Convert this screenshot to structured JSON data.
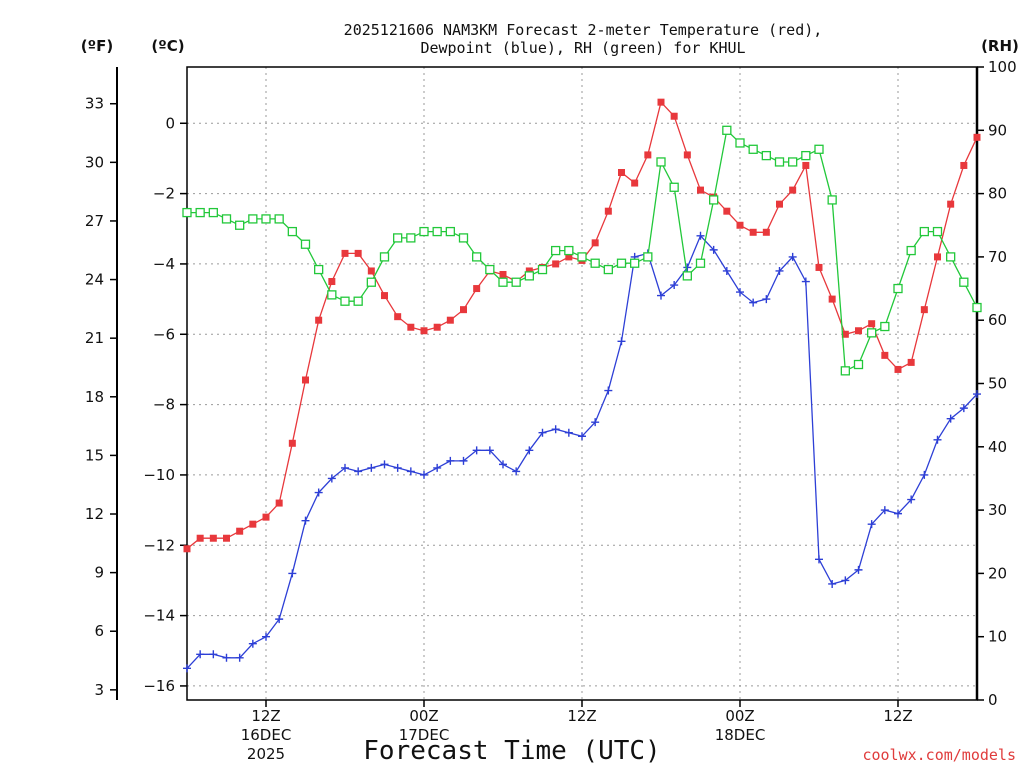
{
  "chart_data": {
    "type": "line",
    "title_line1": "2025121606 NAM3KM Forecast 2-meter Temperature (red),",
    "title_line2": "Dewpoint (blue), RH (green) for KHUL",
    "xlabel": "Forecast Time (UTC)",
    "credit": "coolwx.com/models",
    "units": {
      "fahrenheit": "(ºF)",
      "celsius": "(ºC)",
      "rh": "(RH)"
    },
    "x_range_hours": [
      0,
      60
    ],
    "celsius_range": [
      -16.4,
      1.6
    ],
    "rh_range": [
      0,
      100
    ],
    "fahrenheit_ticks": [
      "3",
      "6",
      "9",
      "12",
      "15",
      "18",
      "21",
      "24",
      "27",
      "30",
      "33"
    ],
    "celsius_ticks": [
      "−16",
      "−14",
      "−12",
      "−10",
      "−8",
      "−6",
      "−4",
      "−2",
      "0"
    ],
    "rh_ticks": [
      "0",
      "10",
      "20",
      "30",
      "40",
      "50",
      "60",
      "70",
      "80",
      "90",
      "100"
    ],
    "x_ticks": [
      {
        "hour": 6,
        "label": "12Z",
        "label2": "16DEC",
        "label3": "2025"
      },
      {
        "hour": 18,
        "label": "00Z",
        "label2": "17DEC",
        "label3": ""
      },
      {
        "hour": 30,
        "label": "12Z",
        "label2": "",
        "label3": ""
      },
      {
        "hour": 42,
        "label": "00Z",
        "label2": "18DEC",
        "label3": ""
      },
      {
        "hour": 54,
        "label": "12Z",
        "label2": "",
        "label3": ""
      }
    ],
    "hours": [
      0,
      1,
      2,
      3,
      4,
      5,
      6,
      7,
      8,
      9,
      10,
      11,
      12,
      13,
      14,
      15,
      16,
      17,
      18,
      19,
      20,
      21,
      22,
      23,
      24,
      25,
      26,
      27,
      28,
      29,
      30,
      31,
      32,
      33,
      34,
      35,
      36,
      37,
      38,
      39,
      40,
      41,
      42,
      43,
      44,
      45,
      46,
      47,
      48,
      49,
      50,
      51,
      52,
      53,
      54,
      55,
      56,
      57,
      58,
      59,
      60
    ],
    "series": [
      {
        "name": "2-meter Temperature",
        "axis": "celsius",
        "color": "#e8383c",
        "marker": "filled-square",
        "values": [
          -12.1,
          -11.8,
          -11.8,
          -11.8,
          -11.6,
          -11.4,
          -11.2,
          -10.8,
          -9.1,
          -7.3,
          -5.6,
          -4.5,
          -3.7,
          -3.7,
          -4.2,
          -4.9,
          -5.5,
          -5.8,
          -5.9,
          -5.8,
          -5.6,
          -5.3,
          -4.7,
          -4.2,
          -4.3,
          -4.5,
          -4.2,
          -4.1,
          -4.0,
          -3.8,
          -3.9,
          -3.4,
          -2.5,
          -1.4,
          -1.7,
          -0.9,
          0.6,
          0.2,
          -0.9,
          -1.9,
          -2.1,
          -2.5,
          -2.9,
          -3.1,
          -3.1,
          -2.3,
          -1.9,
          -1.2,
          -4.1,
          -5.0,
          -6.0,
          -5.9,
          -5.7,
          -6.6,
          -7.0,
          -6.8,
          -5.3,
          -3.8,
          -2.3,
          -1.2,
          -0.4
        ]
      },
      {
        "name": "Dewpoint",
        "axis": "celsius",
        "color": "#2d3fd6",
        "marker": "plus",
        "values": [
          -15.5,
          -15.1,
          -15.1,
          -15.2,
          -15.2,
          -14.8,
          -14.6,
          -14.1,
          -12.8,
          -11.3,
          -10.5,
          -10.1,
          -9.8,
          -9.9,
          -9.8,
          -9.7,
          -9.8,
          -9.9,
          -10.0,
          -9.8,
          -9.6,
          -9.6,
          -9.3,
          -9.3,
          -9.7,
          -9.9,
          -9.3,
          -8.8,
          -8.7,
          -8.8,
          -8.9,
          -8.5,
          -7.6,
          -6.2,
          -3.8,
          -3.7,
          -4.9,
          -4.6,
          -4.1,
          -3.2,
          -3.6,
          -4.2,
          -4.8,
          -5.1,
          -5.0,
          -4.2,
          -3.8,
          -4.5,
          -12.4,
          -13.1,
          -13.0,
          -12.7,
          -11.4,
          -11.0,
          -11.1,
          -10.7,
          -10.0,
          -9.0,
          -8.4,
          -8.1,
          -7.7
        ]
      },
      {
        "name": "Relative Humidity",
        "axis": "rh",
        "color": "#22c83a",
        "marker": "open-square",
        "values": [
          77,
          77,
          77,
          76,
          75,
          76,
          76,
          76,
          74,
          72,
          68,
          64,
          63,
          63,
          66,
          70,
          73,
          73,
          74,
          74,
          74,
          73,
          70,
          68,
          66,
          66,
          67,
          68,
          71,
          71,
          70,
          69,
          68,
          69,
          69,
          70,
          85,
          81,
          67,
          69,
          79,
          90,
          88,
          87,
          86,
          85,
          85,
          86,
          87,
          79,
          52,
          53,
          58,
          59,
          65,
          71,
          74,
          74,
          70,
          66,
          62
        ]
      }
    ]
  }
}
